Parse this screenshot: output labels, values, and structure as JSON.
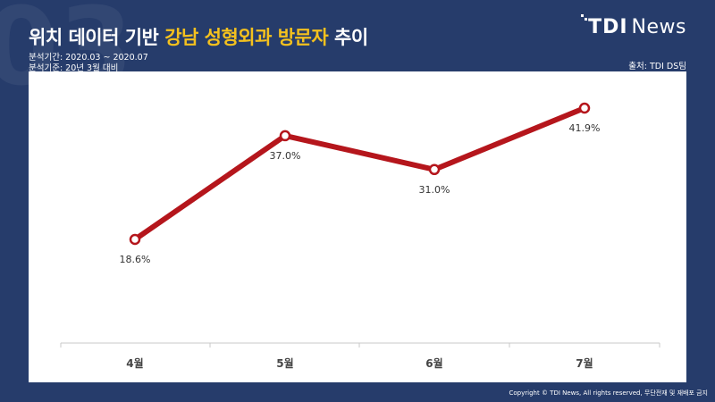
{
  "background_number": "03",
  "title": {
    "part1": "위치 데이터 기반 ",
    "highlight": "강남 성형외과 방문자",
    "part2": " 추이"
  },
  "meta": {
    "period": "분석기간: 2020.03 ~ 2020.07",
    "baseline": "분석기준: 20년 3월 대비"
  },
  "source": "출처: TDI DS팀",
  "logo": {
    "tdi": "TDI",
    "news": "News"
  },
  "copyright": "Copyright © TDI News, All rights reserved, 무단전재 및 재배포 금지",
  "colors": {
    "background": "#263c6b",
    "highlight": "#f4c11e",
    "line": "#b5161c"
  },
  "chart_data": {
    "type": "line",
    "categories": [
      "4월",
      "5월",
      "6월",
      "7월"
    ],
    "values": [
      18.6,
      37.0,
      31.0,
      41.9
    ],
    "data_labels": [
      "18.6%",
      "37.0%",
      "31.0%",
      "41.9%"
    ],
    "ylim": [
      10,
      45
    ],
    "grid": false
  }
}
